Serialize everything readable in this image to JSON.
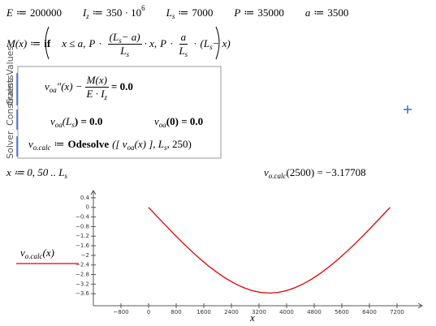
{
  "assign": "≔",
  "definitions": [
    {
      "name": "E",
      "value": "200000"
    },
    {
      "name": "I",
      "sub": "z",
      "value": "350 · 10",
      "sup": "6"
    },
    {
      "name": "L",
      "sub": "s",
      "value": "7000"
    },
    {
      "name": "P",
      "value": "35000"
    },
    {
      "name": "a",
      "value": "3500"
    }
  ],
  "function": [
    "M(x)",
    "if",
    "x ≤ a",
    ",",
    "P",
    "·",
    "(L",
    "s",
    " − a)",
    "L",
    "s",
    "· x",
    ",",
    "P",
    "·",
    "a",
    "L",
    "s",
    "·",
    "(L",
    "s",
    " − x)"
  ],
  "solver": {
    "labels": [
      "Guess Values",
      "Constraints",
      "Solver"
    ],
    "ode": [
      "v",
      "oa",
      "″(x) −",
      "M(x)",
      "E · I",
      "z",
      "= 0.0"
    ],
    "constraint1": [
      "v",
      "oa",
      "(L",
      "s",
      ") = 0.0"
    ],
    "constraint2": [
      "v",
      "oa",
      "(0) = 0.0"
    ],
    "odesolve": [
      "v",
      "o.calc",
      "Odesolve",
      "([ v",
      "oa",
      "(x) ], L",
      "s",
      ", 250)"
    ]
  },
  "range": [
    "x ≔ 0, 50 .. L",
    "s"
  ],
  "evaluation": [
    "v",
    "o.calc",
    "(2500) = −3.17708"
  ],
  "chart_data": {
    "type": "line",
    "x_label": "x",
    "legend": [
      "v",
      "o.calc",
      "(x)"
    ],
    "x": [
      0,
      250,
      500,
      750,
      1000,
      1250,
      1500,
      1750,
      2000,
      2250,
      2500,
      2750,
      3000,
      3250,
      3500,
      3750,
      4000,
      4250,
      4500,
      4750,
      5000,
      5250,
      5500,
      5750,
      6000,
      6250,
      6500,
      6750,
      7000
    ],
    "series": [
      {
        "color": "#e00000",
        "values": [
          0,
          -0.382,
          -0.76,
          -1.131,
          -1.49,
          -1.833,
          -2.156,
          -2.456,
          -2.729,
          -2.971,
          -3.177,
          -3.344,
          -3.469,
          -3.546,
          -3.573,
          -3.546,
          -3.469,
          -3.344,
          -3.177,
          -2.971,
          -2.729,
          -2.456,
          -2.156,
          -1.833,
          -1.49,
          -1.131,
          -0.76,
          -0.382,
          0
        ]
      }
    ],
    "xlim": [
      -1600,
      7930
    ],
    "ylim": [
      -4.1,
      0.7
    ],
    "xticks": [
      {
        "value": -800,
        "label": "−800"
      },
      0,
      800,
      1600,
      2400,
      3200,
      4000,
      4800,
      5600,
      6400,
      7200
    ],
    "yticks": [
      0.4,
      0,
      {
        "value": -0.4,
        "label": "−0.4"
      },
      {
        "value": -0.8,
        "label": "−0.8"
      },
      {
        "value": -1.2,
        "label": "−1.2"
      },
      {
        "value": -1.6,
        "label": "−1.6"
      },
      {
        "value": -2,
        "label": "−2"
      },
      {
        "value": -2.4,
        "label": "−2.4"
      },
      {
        "value": -2.8,
        "label": "−2.8"
      },
      {
        "value": -3.2,
        "label": "−3.2"
      },
      {
        "value": -3.6,
        "label": "−3.6"
      }
    ]
  }
}
